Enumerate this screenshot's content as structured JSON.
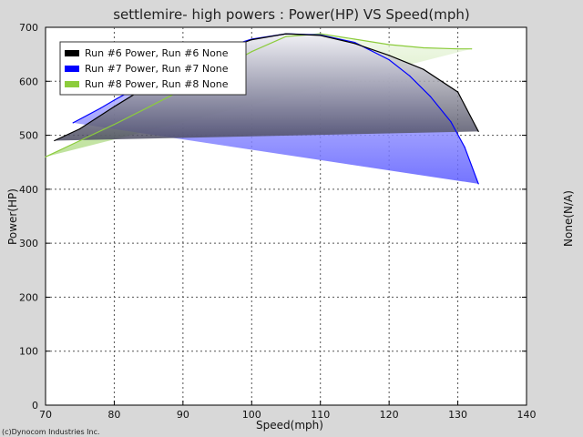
{
  "chart_data": {
    "type": "area",
    "title": "settlemire- high powers : Power(HP) VS Speed(mph)",
    "xlabel": "Speed(mph)",
    "ylabel": "Power(HP)",
    "y2label": "None(N/A)",
    "xlim": [
      70,
      140
    ],
    "ylim": [
      0,
      700
    ],
    "xticks": [
      70,
      80,
      90,
      100,
      110,
      120,
      130,
      140
    ],
    "yticks": [
      0,
      100,
      200,
      300,
      400,
      500,
      600,
      700
    ],
    "grid": true,
    "legend_position": "top-left",
    "series": [
      {
        "name": "Run #6 Power, Run #6 None",
        "color": "#000000",
        "fill_color": "#4a4a60",
        "x": [
          71.3,
          75,
          80,
          85,
          90,
          95,
          100,
          105,
          110,
          115,
          120,
          125,
          130,
          133
        ],
        "values": [
          490,
          512,
          553,
          592,
          625,
          654,
          677,
          688,
          685,
          670,
          648,
          622,
          580,
          507
        ]
      },
      {
        "name": "Run #7 Power, Run #7 None",
        "color": "#0000ff",
        "fill_color": "#6a6aff",
        "x": [
          74,
          78,
          80,
          85,
          90,
          95,
          100,
          105,
          110,
          115,
          120,
          123,
          126,
          129,
          131,
          133
        ],
        "values": [
          523,
          550,
          565,
          600,
          632,
          658,
          678,
          688,
          686,
          672,
          640,
          610,
          572,
          525,
          478,
          410
        ]
      },
      {
        "name": "Run #8 Power, Run #8 None",
        "color": "#8ccc3c",
        "fill_color": "#b8e08a",
        "x": [
          70,
          75,
          80,
          85,
          90,
          95,
          100,
          105,
          110,
          115,
          120,
          125,
          130,
          132
        ],
        "values": [
          460,
          490,
          520,
          552,
          585,
          620,
          655,
          683,
          688,
          678,
          668,
          662,
          660,
          660
        ]
      }
    ]
  },
  "footer": {
    "copyright": "(c)Dynocom Industries Inc."
  }
}
